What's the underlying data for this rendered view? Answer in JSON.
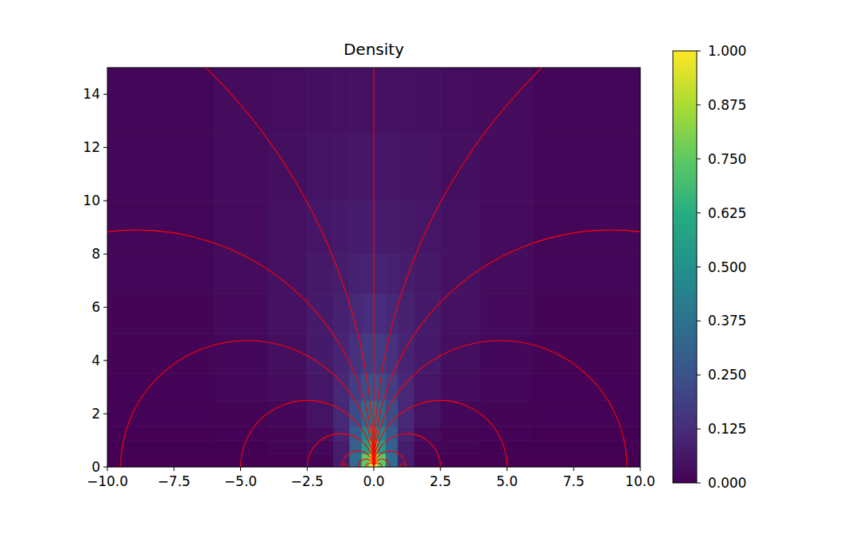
{
  "chart_data": {
    "type": "heatmap",
    "title": "Density",
    "xlim": [
      -10,
      10
    ],
    "ylim": [
      0,
      15
    ],
    "xticks": [
      {
        "value": -10,
        "label": "−10.0"
      },
      {
        "value": -7.5,
        "label": "−7.5"
      },
      {
        "value": -5,
        "label": "−5.0"
      },
      {
        "value": -2.5,
        "label": "−2.5"
      },
      {
        "value": 0,
        "label": "0.0"
      },
      {
        "value": 2.5,
        "label": "2.5"
      },
      {
        "value": 5,
        "label": "5.0"
      },
      {
        "value": 7.5,
        "label": "7.5"
      },
      {
        "value": 10,
        "label": "10.0"
      }
    ],
    "yticks": [
      0,
      2,
      4,
      6,
      8,
      10,
      12,
      14
    ],
    "heatmap": {
      "x_edges": [
        -10,
        -6,
        -4,
        -2.5,
        -1.5,
        -0.9,
        -0.45,
        -0.15,
        0.15,
        0.45,
        0.9,
        1.5,
        2.5,
        4,
        6,
        10
      ],
      "y_edges": [
        0,
        0.5,
        1,
        1.5,
        2.5,
        3.5,
        5,
        6.5,
        8,
        10,
        12.5,
        15
      ],
      "cells": [
        [
          0,
          0,
          0,
          0.01,
          0.08,
          0.35,
          0.75,
          0.95,
          0.75,
          0.35,
          0.08,
          0.01,
          0,
          0,
          0
        ],
        [
          0,
          0,
          0.01,
          0.02,
          0.08,
          0.3,
          0.55,
          0.75,
          0.55,
          0.3,
          0.08,
          0.02,
          0.01,
          0,
          0
        ],
        [
          0,
          0.005,
          0.01,
          0.03,
          0.1,
          0.28,
          0.45,
          0.55,
          0.45,
          0.28,
          0.1,
          0.03,
          0.01,
          0.005,
          0
        ],
        [
          0.005,
          0.01,
          0.02,
          0.05,
          0.11,
          0.23,
          0.33,
          0.38,
          0.33,
          0.23,
          0.11,
          0.05,
          0.02,
          0.01,
          0.005
        ],
        [
          0.005,
          0.015,
          0.03,
          0.06,
          0.11,
          0.18,
          0.23,
          0.25,
          0.23,
          0.18,
          0.11,
          0.06,
          0.03,
          0.015,
          0.005
        ],
        [
          0.01,
          0.02,
          0.04,
          0.07,
          0.1,
          0.14,
          0.17,
          0.18,
          0.17,
          0.14,
          0.1,
          0.07,
          0.04,
          0.02,
          0.01
        ],
        [
          0.01,
          0.025,
          0.045,
          0.07,
          0.09,
          0.11,
          0.125,
          0.13,
          0.125,
          0.11,
          0.09,
          0.07,
          0.045,
          0.025,
          0.01
        ],
        [
          0.015,
          0.03,
          0.045,
          0.065,
          0.08,
          0.09,
          0.1,
          0.1,
          0.1,
          0.09,
          0.08,
          0.065,
          0.045,
          0.03,
          0.015
        ],
        [
          0.015,
          0.03,
          0.045,
          0.06,
          0.07,
          0.075,
          0.08,
          0.08,
          0.08,
          0.075,
          0.07,
          0.06,
          0.045,
          0.03,
          0.015
        ],
        [
          0.015,
          0.03,
          0.04,
          0.05,
          0.055,
          0.058,
          0.06,
          0.06,
          0.06,
          0.058,
          0.055,
          0.05,
          0.04,
          0.03,
          0.015
        ],
        [
          0.015,
          0.028,
          0.035,
          0.04,
          0.043,
          0.045,
          0.045,
          0.045,
          0.045,
          0.045,
          0.043,
          0.04,
          0.035,
          0.028,
          0.015
        ]
      ]
    },
    "colorbar": {
      "range": [
        0,
        1
      ],
      "ticks": [
        {
          "value": 0,
          "label": "0.000"
        },
        {
          "value": 0.125,
          "label": "0.125"
        },
        {
          "value": 0.25,
          "label": "0.250"
        },
        {
          "value": 0.375,
          "label": "0.375"
        },
        {
          "value": 0.5,
          "label": "0.500"
        },
        {
          "value": 0.625,
          "label": "0.625"
        },
        {
          "value": 0.75,
          "label": "0.750"
        },
        {
          "value": 0.875,
          "label": "0.875"
        },
        {
          "value": 1,
          "label": "1.000"
        }
      ]
    },
    "field_lines": {
      "color": "#ff0000",
      "verticals": [
        0
      ],
      "circles": [
        {
          "cx": -0.15,
          "r": 0.15
        },
        {
          "cx": 0.15,
          "r": 0.15
        },
        {
          "cx": -0.3,
          "r": 0.3
        },
        {
          "cx": 0.3,
          "r": 0.3
        },
        {
          "cx": -0.6,
          "r": 0.6
        },
        {
          "cx": 0.6,
          "r": 0.6
        },
        {
          "cx": -1.25,
          "r": 1.25
        },
        {
          "cx": 1.25,
          "r": 1.25
        },
        {
          "cx": -2.5,
          "r": 2.5
        },
        {
          "cx": 2.5,
          "r": 2.5
        },
        {
          "cx": -4.75,
          "r": 4.75
        },
        {
          "cx": 4.75,
          "r": 4.75
        },
        {
          "cx": -8.9,
          "r": 8.9
        },
        {
          "cx": 8.9,
          "r": 8.9
        },
        {
          "cx": -21,
          "r": 21
        },
        {
          "cx": 21,
          "r": 21
        },
        {
          "cx": -1.1,
          "r": 0.12
        },
        {
          "cx": 1.1,
          "r": 0.12
        }
      ]
    }
  }
}
